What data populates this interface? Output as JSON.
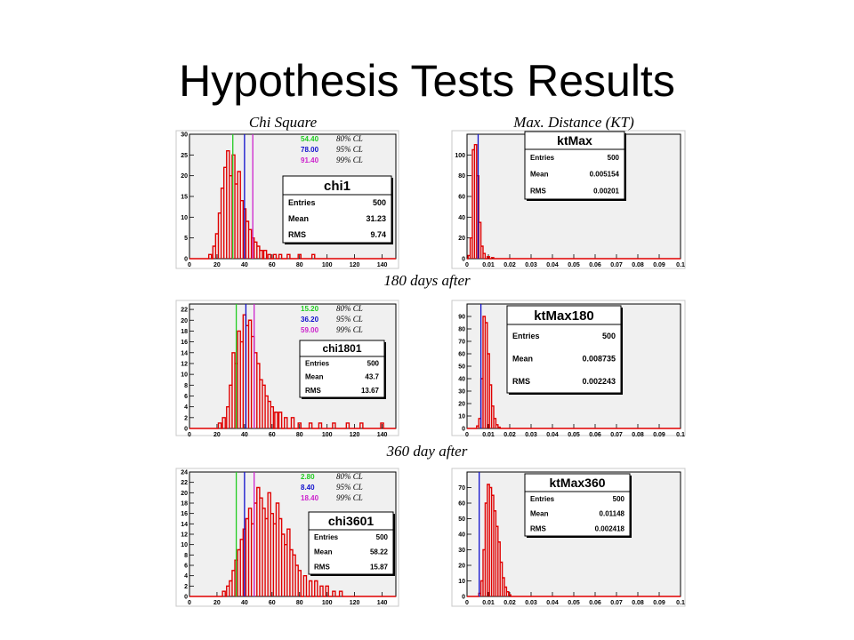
{
  "slide_title": "Hypothesis Tests Results",
  "column_titles": {
    "left": "Chi Square",
    "right": "Max. Distance (KT)"
  },
  "section_labels": [
    "180 days after",
    "360 day after"
  ],
  "colors": {
    "histogram": "#e00000",
    "frame_bg": "#f0f0f0",
    "cl80": "#22cc22",
    "cl95": "#1010cc",
    "cl99": "#cc22cc"
  },
  "chart_data": [
    {
      "type": "bar",
      "title": "Chi Square",
      "xlim": [
        0,
        150
      ],
      "ylim": [
        0,
        30
      ],
      "x_ticks": [
        "0",
        "20",
        "40",
        "60",
        "80",
        "100",
        "120",
        "140"
      ],
      "y_ticks": [
        "0",
        "5",
        "10",
        "15",
        "20",
        "25",
        "30"
      ],
      "x": [
        15,
        18,
        20,
        22,
        24,
        26,
        28,
        30,
        32,
        34,
        36,
        38,
        40,
        42,
        44,
        46,
        48,
        50,
        52,
        55,
        58,
        62,
        66,
        72,
        80,
        90
      ],
      "values": [
        1,
        3,
        6,
        11,
        17,
        22,
        26,
        20,
        25,
        18,
        21,
        14,
        12,
        9,
        7,
        5,
        4,
        3,
        2,
        2,
        1,
        1,
        1,
        1,
        1,
        1
      ],
      "cl_lines": [
        {
          "x": 31.5,
          "value": "54.40",
          "label": "80% CL",
          "color": "#22cc22"
        },
        {
          "x": 40,
          "value": "78.00",
          "label": "95% CL",
          "color": "#1010cc"
        },
        {
          "x": 46,
          "value": "91.40",
          "label": "99% CL",
          "color": "#cc22cc"
        }
      ],
      "stats": {
        "name": "chi1",
        "rows": [
          {
            "key": "Entries",
            "value": "500"
          },
          {
            "key": "Mean",
            "value": "31.23"
          },
          {
            "key": "RMS",
            "value": "9.74"
          }
        ]
      }
    },
    {
      "type": "bar",
      "title": "Max. Distance (KT)",
      "xlim": [
        0,
        0.1
      ],
      "ylim": [
        0,
        120
      ],
      "x_ticks": [
        "0",
        "0.01",
        "0.02",
        "0.03",
        "0.04",
        "0.05",
        "0.06",
        "0.07",
        "0.08",
        "0.09",
        "0.1"
      ],
      "y_ticks": [
        "0",
        "20",
        "40",
        "60",
        "80",
        "100"
      ],
      "x": [
        0.001,
        0.002,
        0.003,
        0.004,
        0.005,
        0.006,
        0.007,
        0.008,
        0.01,
        0.012
      ],
      "values": [
        3,
        20,
        105,
        110,
        80,
        35,
        12,
        5,
        2,
        1
      ],
      "cl_lines": [
        {
          "x": 0.0052,
          "color": "#1010cc"
        }
      ],
      "stats": {
        "name": "ktMax",
        "rows": [
          {
            "key": "Entries",
            "value": "500"
          },
          {
            "key": "Mean",
            "value": "0.005154"
          },
          {
            "key": "RMS",
            "value": "0.00201"
          }
        ]
      }
    },
    {
      "type": "bar",
      "title": "180 days after",
      "xlim": [
        0,
        150
      ],
      "ylim": [
        0,
        23
      ],
      "x_ticks": [
        "0",
        "20",
        "40",
        "60",
        "80",
        "100",
        "120",
        "140"
      ],
      "y_ticks": [
        "0",
        "2",
        "4",
        "6",
        "8",
        "10",
        "12",
        "14",
        "16",
        "18",
        "20",
        "22"
      ],
      "x": [
        22,
        25,
        28,
        30,
        32,
        34,
        36,
        38,
        40,
        42,
        44,
        46,
        48,
        50,
        52,
        54,
        56,
        58,
        60,
        63,
        66,
        70,
        75,
        80,
        88,
        95,
        105,
        115,
        125,
        140
      ],
      "values": [
        1,
        2,
        4,
        8,
        14,
        12,
        18,
        16,
        21,
        19,
        20,
        17,
        14,
        12,
        9,
        8,
        6,
        5,
        4,
        3,
        3,
        2,
        2,
        1,
        1,
        1,
        1,
        1,
        1,
        1
      ],
      "cl_lines": [
        {
          "x": 34,
          "value": "15.20",
          "label": "80% CL",
          "color": "#22cc22"
        },
        {
          "x": 41,
          "value": "36.20",
          "label": "95% CL",
          "color": "#1010cc"
        },
        {
          "x": 47,
          "value": "59.00",
          "label": "99% CL",
          "color": "#cc22cc"
        }
      ],
      "stats": {
        "name": "chi1801",
        "rows": [
          {
            "key": "Entries",
            "value": "500"
          },
          {
            "key": "Mean",
            "value": "43.7"
          },
          {
            "key": "RMS",
            "value": "13.67"
          }
        ]
      }
    },
    {
      "type": "bar",
      "title": "180 days after",
      "xlim": [
        0,
        0.1
      ],
      "ylim": [
        0,
        100
      ],
      "x_ticks": [
        "0",
        "0.01",
        "0.02",
        "0.03",
        "0.04",
        "0.05",
        "0.06",
        "0.07",
        "0.08",
        "0.09",
        "0.1"
      ],
      "y_ticks": [
        "0",
        "10",
        "20",
        "30",
        "40",
        "50",
        "60",
        "70",
        "80",
        "90"
      ],
      "x": [
        0.005,
        0.006,
        0.007,
        0.008,
        0.009,
        0.01,
        0.011,
        0.012,
        0.013,
        0.014,
        0.015
      ],
      "values": [
        2,
        8,
        40,
        90,
        85,
        60,
        35,
        18,
        8,
        3,
        1
      ],
      "cl_lines": [
        {
          "x": 0.0065,
          "color": "#1010cc"
        }
      ],
      "stats": {
        "name": "ktMax180",
        "rows": [
          {
            "key": "Entries",
            "value": "500"
          },
          {
            "key": "Mean",
            "value": "0.008735"
          },
          {
            "key": "RMS",
            "value": "0.002243"
          }
        ]
      }
    },
    {
      "type": "bar",
      "title": "360 day after",
      "xlim": [
        0,
        150
      ],
      "ylim": [
        0,
        24
      ],
      "x_ticks": [
        "0",
        "20",
        "40",
        "60",
        "80",
        "100",
        "120",
        "140"
      ],
      "y_ticks": [
        "0",
        "2",
        "4",
        "6",
        "8",
        "10",
        "12",
        "14",
        "16",
        "18",
        "20",
        "22",
        "24"
      ],
      "x": [
        25,
        28,
        30,
        32,
        34,
        36,
        38,
        40,
        42,
        44,
        46,
        48,
        50,
        52,
        54,
        56,
        58,
        60,
        62,
        64,
        66,
        68,
        70,
        72,
        74,
        76,
        78,
        80,
        84,
        88,
        92,
        96,
        100,
        105,
        110
      ],
      "values": [
        1,
        2,
        3,
        5,
        7,
        9,
        11,
        13,
        15,
        17,
        14,
        18,
        21,
        19,
        17,
        15,
        20,
        16,
        14,
        18,
        15,
        12,
        10,
        13,
        9,
        8,
        6,
        5,
        4,
        3,
        3,
        2,
        2,
        1,
        1
      ],
      "cl_lines": [
        {
          "x": 34,
          "value": "2.80",
          "label": "80% CL",
          "color": "#22cc22"
        },
        {
          "x": 40,
          "value": "8.40",
          "label": "95% CL",
          "color": "#1010cc"
        },
        {
          "x": 47,
          "value": "18.40",
          "label": "99% CL",
          "color": "#cc22cc"
        }
      ],
      "stats": {
        "name": "chi3601",
        "rows": [
          {
            "key": "Entries",
            "value": "500"
          },
          {
            "key": "Mean",
            "value": "58.22"
          },
          {
            "key": "RMS",
            "value": "15.87"
          }
        ]
      }
    },
    {
      "type": "bar",
      "title": "360 day after",
      "xlim": [
        0,
        0.1
      ],
      "ylim": [
        0,
        80
      ],
      "x_ticks": [
        "0",
        "0.01",
        "0.02",
        "0.03",
        "0.04",
        "0.05",
        "0.06",
        "0.07",
        "0.08",
        "0.09",
        "0.1"
      ],
      "y_ticks": [
        "0",
        "10",
        "20",
        "30",
        "40",
        "50",
        "60",
        "70"
      ],
      "x": [
        0.006,
        0.007,
        0.008,
        0.009,
        0.01,
        0.011,
        0.012,
        0.013,
        0.014,
        0.015,
        0.016,
        0.017,
        0.018,
        0.019,
        0.02
      ],
      "values": [
        2,
        10,
        30,
        60,
        72,
        70,
        65,
        55,
        45,
        35,
        22,
        12,
        6,
        3,
        1
      ],
      "cl_lines": [
        {
          "x": 0.0057,
          "color": "#1010cc"
        }
      ],
      "stats": {
        "name": "ktMax360",
        "rows": [
          {
            "key": "Entries",
            "value": "500"
          },
          {
            "key": "Mean",
            "value": "0.01148"
          },
          {
            "key": "RMS",
            "value": "0.002418"
          }
        ]
      }
    }
  ]
}
